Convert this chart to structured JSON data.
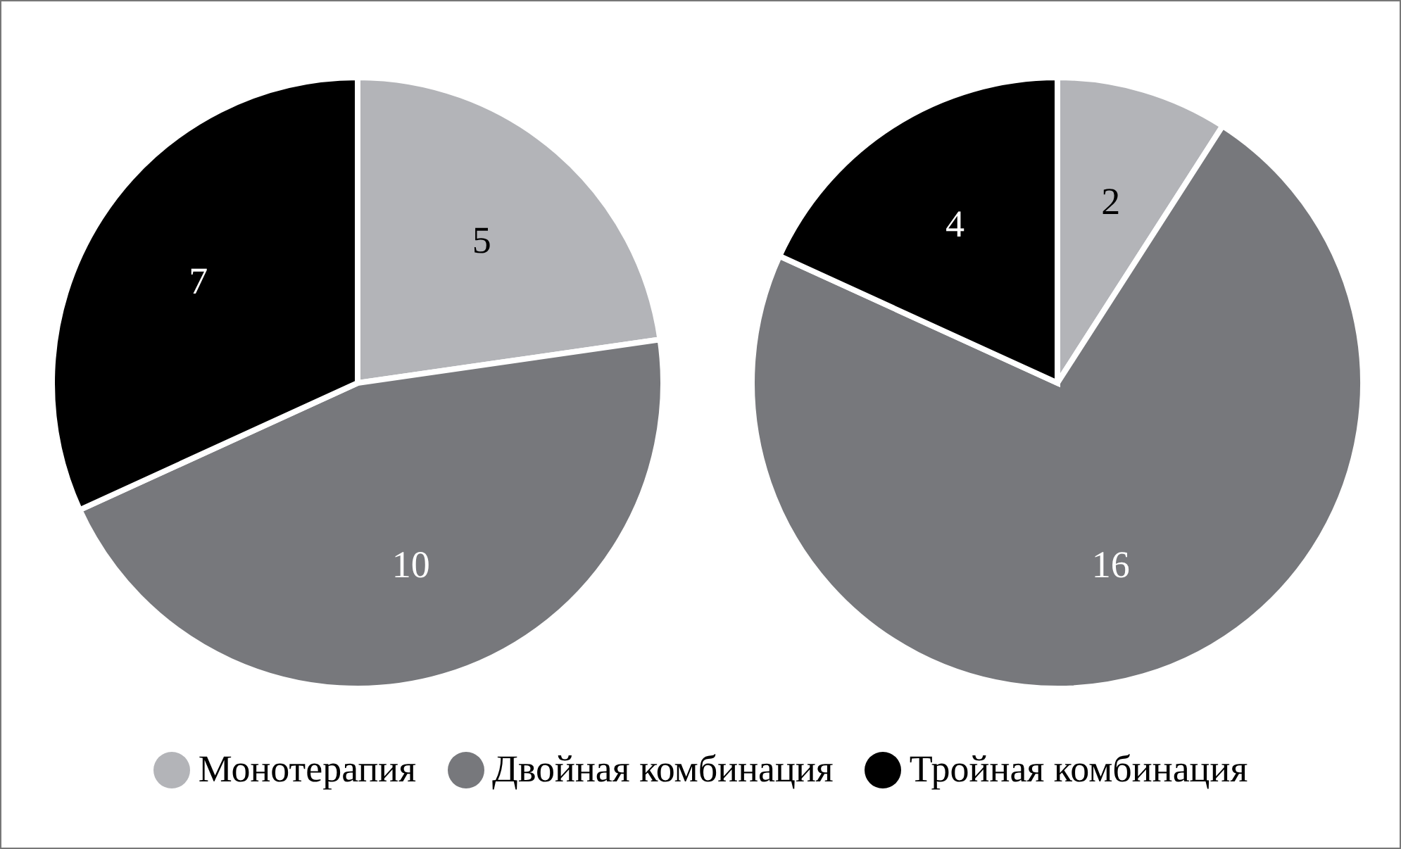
{
  "chart_data": [
    {
      "type": "pie",
      "categories": [
        "Монотерапия",
        "Двойная комбинация",
        "Тройная комбинация"
      ],
      "values": [
        5,
        10,
        7
      ],
      "colors": [
        "#b3b4b8",
        "#77787c",
        "#000000"
      ],
      "data_labels": true,
      "legend": "bottom"
    },
    {
      "type": "pie",
      "categories": [
        null,
        null,
        null
      ],
      "values": [
        2,
        16,
        4
      ],
      "colors": [
        "#b3b4b8",
        "#77787c",
        "#000000"
      ],
      "data_labels": true
    }
  ]
}
